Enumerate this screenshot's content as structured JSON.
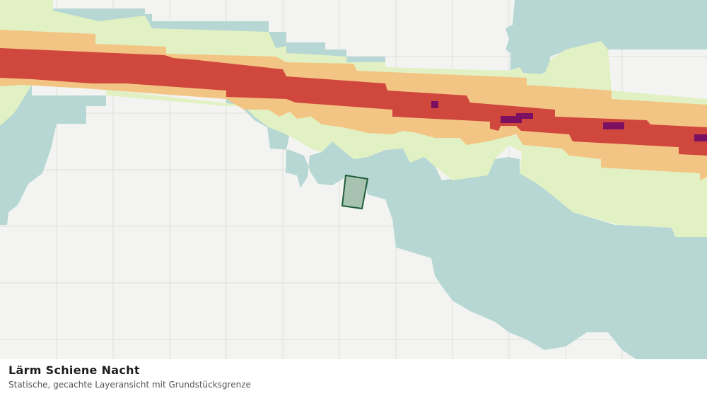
{
  "header": {
    "title": "Lärm Schiene Nacht",
    "subtitle": "Statische, gecachte Layeransicht mit Grundstücksgrenze"
  }
}
